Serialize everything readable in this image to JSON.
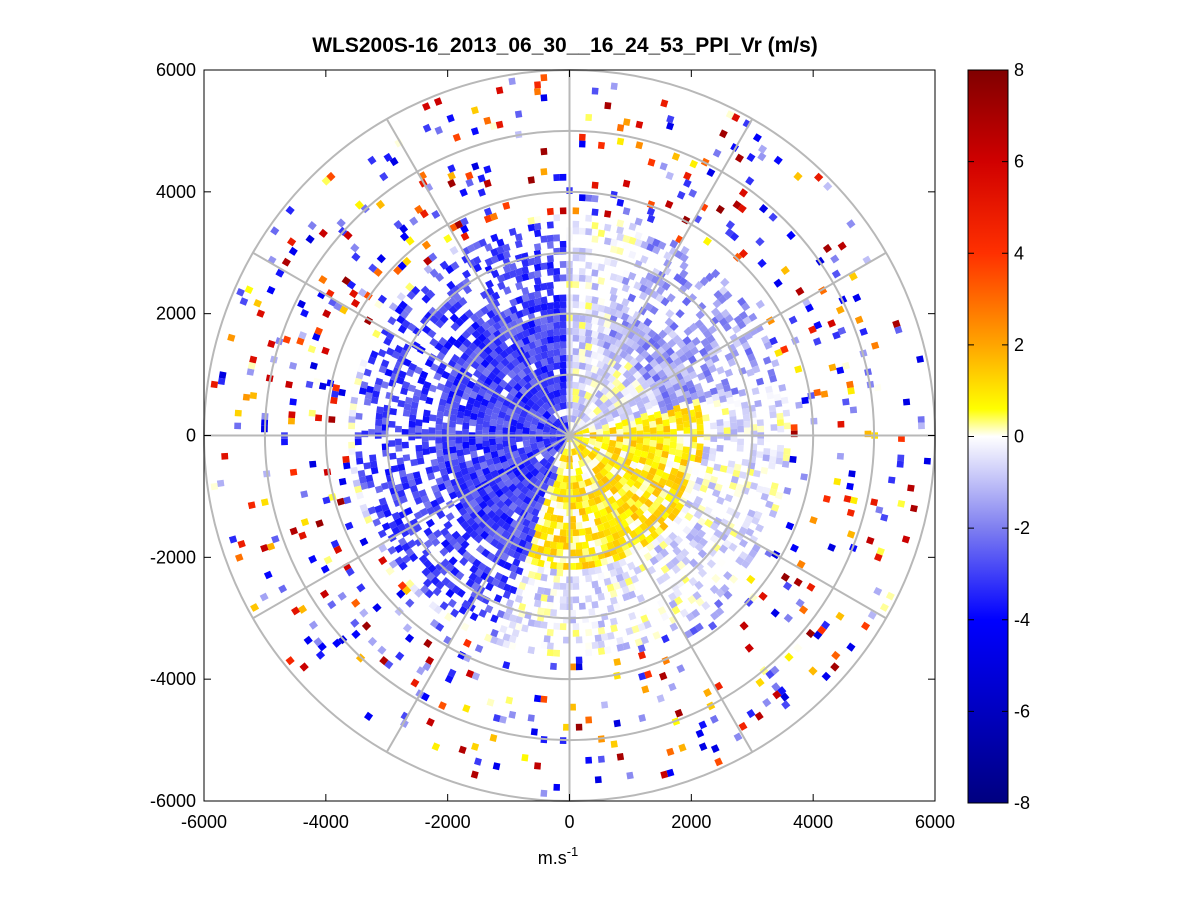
{
  "chart_data": {
    "type": "heatmap",
    "subtype": "polar-ppi-scan",
    "title": "WLS200S-16_2013_06_30__16_24_53_PPI_Vr (m/s)",
    "xlabel_base": "m.s",
    "xlabel_sup": "-1",
    "ylabel": "",
    "xlim": [
      -6000,
      6000
    ],
    "ylim": [
      -6000,
      6000
    ],
    "x_ticks": [
      "-6000",
      "-4000",
      "-2000",
      "0",
      "2000",
      "4000",
      "6000"
    ],
    "y_ticks": [
      "6000",
      "4000",
      "2000",
      "0",
      "-2000",
      "-4000",
      "-6000"
    ],
    "polar_grid": {
      "ring_radii_m": [
        1000,
        2000,
        3000,
        4000,
        5000,
        6000
      ],
      "spoke_angles_deg": [
        0,
        30,
        60,
        90,
        120,
        150,
        180,
        210,
        240,
        270,
        300,
        330
      ]
    },
    "colorbar": {
      "range": [
        -8,
        8
      ],
      "ticks": [
        "8",
        "6",
        "4",
        "2",
        "0",
        "-2",
        "-4",
        "-6",
        "-8"
      ],
      "colormap": [
        {
          "value": -8,
          "color": "#000080"
        },
        {
          "value": -6,
          "color": "#0000c0"
        },
        {
          "value": -4,
          "color": "#0000ff"
        },
        {
          "value": -2,
          "color": "#7f7ff0"
        },
        {
          "value": 0,
          "color": "#ffffff"
        },
        {
          "value": 0.6,
          "color": "#ffff00"
        },
        {
          "value": 2,
          "color": "#ffa500"
        },
        {
          "value": 4,
          "color": "#ff3000"
        },
        {
          "value": 6,
          "color": "#d00000"
        },
        {
          "value": 8,
          "color": "#800000"
        }
      ]
    },
    "field_regions": [
      {
        "description": "approaching wind sector (NW)",
        "azimuth_range_deg": [
          200,
          360
        ],
        "range_m": [
          0,
          3500
        ],
        "mean_vr": -3.0
      },
      {
        "description": "approaching wind sector (NE)",
        "azimuth_range_deg": [
          20,
          75
        ],
        "range_m": [
          1500,
          4200
        ],
        "mean_vr": -1.5
      },
      {
        "description": "receding wind sector (SE)",
        "azimuth_range_deg": [
          75,
          200
        ],
        "range_m": [
          0,
          2200
        ],
        "mean_vr": 0.8
      },
      {
        "description": "scattered near-zero / noisy returns",
        "azimuth_range_deg": [
          0,
          360
        ],
        "range_m": [
          3000,
          6000
        ],
        "mean_vr": -0.5
      }
    ]
  },
  "colors": {
    "axes": "#000000",
    "polar_grid": "#b8b8b8",
    "background": "#ffffff"
  }
}
